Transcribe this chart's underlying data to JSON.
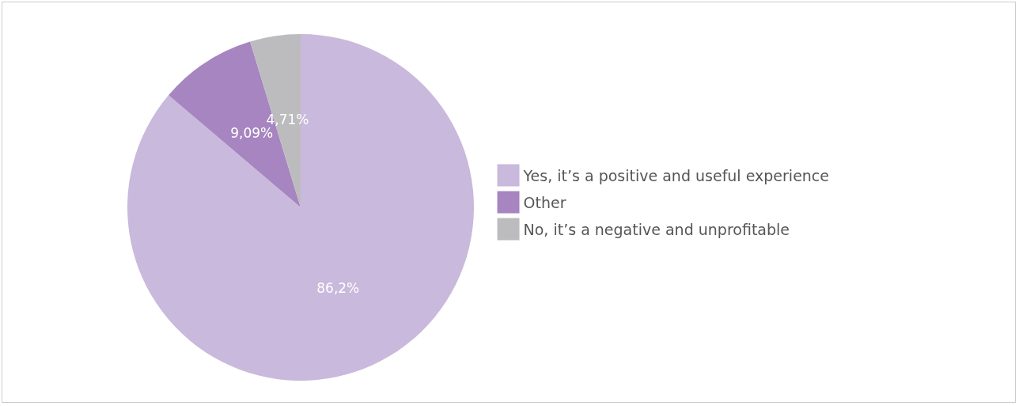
{
  "chart_data": {
    "type": "pie",
    "categories": [
      "Yes, it’s a positive and useful experience",
      "Other",
      "No, it’s a negative and unprofitable"
    ],
    "values": [
      86.2,
      9.09,
      4.71
    ],
    "colors": [
      "#c9b9dc",
      "#a685c0",
      "#bcbcbf"
    ],
    "value_labels": [
      "86,2%",
      "9,09%",
      "4,71%"
    ],
    "legend": "right"
  }
}
